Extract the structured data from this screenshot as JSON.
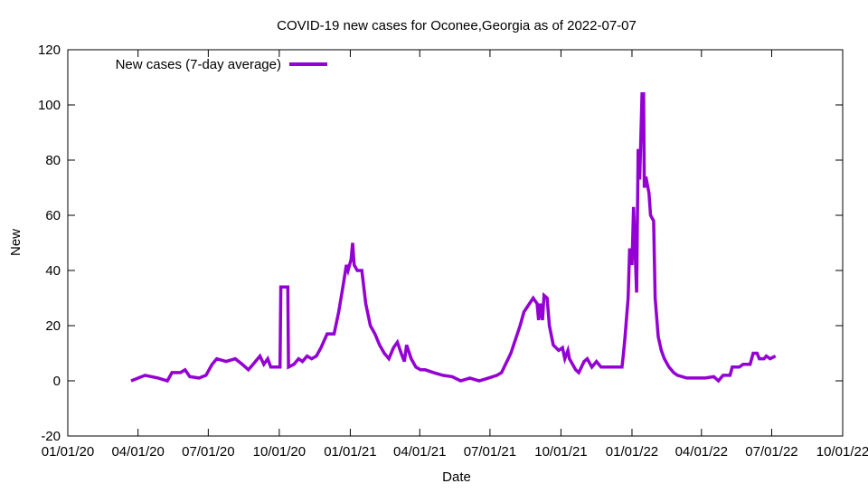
{
  "chart_data": {
    "type": "line",
    "title": "COVID-19 new cases for Oconee,Georgia as of 2022-07-07",
    "xlabel": "Date",
    "ylabel": "New",
    "x_units": "days since 2020-01-01",
    "xlim": [
      0,
      1004
    ],
    "ylim": [
      -20,
      120
    ],
    "yticks": [
      -20,
      0,
      20,
      40,
      60,
      80,
      100,
      120
    ],
    "xticks": [
      {
        "day": 0,
        "label": "01/01/20"
      },
      {
        "day": 91,
        "label": "04/01/20"
      },
      {
        "day": 182,
        "label": "07/01/20"
      },
      {
        "day": 274,
        "label": "10/01/20"
      },
      {
        "day": 366,
        "label": "01/01/21"
      },
      {
        "day": 456,
        "label": "04/01/21"
      },
      {
        "day": 547,
        "label": "07/01/21"
      },
      {
        "day": 639,
        "label": "10/01/21"
      },
      {
        "day": 731,
        "label": "01/01/22"
      },
      {
        "day": 821,
        "label": "04/01/22"
      },
      {
        "day": 912,
        "label": "07/01/22"
      },
      {
        "day": 1004,
        "label": "10/01/22"
      }
    ],
    "grid": false,
    "legend_position": "top-left",
    "series": [
      {
        "name": "New cases (7-day average)",
        "color": "#9400d3",
        "x": [
          82,
          100,
          117,
          129,
          135,
          146,
          152,
          158,
          170,
          179,
          187,
          193,
          205,
          217,
          226,
          234,
          240,
          249,
          254,
          259,
          263,
          269,
          275,
          276,
          285,
          286,
          293,
          299,
          304,
          310,
          316,
          322,
          328,
          336,
          345,
          351,
          357,
          361,
          363,
          367,
          369,
          371,
          375,
          381,
          386,
          392,
          398,
          404,
          410,
          416,
          422,
          427,
          432,
          436,
          439,
          445,
          451,
          457,
          463,
          474,
          486,
          498,
          509,
          521,
          533,
          545,
          556,
          562,
          574,
          586,
          591,
          603,
          608,
          610,
          612,
          615,
          617,
          621,
          624,
          629,
          636,
          641,
          644,
          648,
          650,
          658,
          662,
          669,
          673,
          679,
          685,
          691,
          697,
          705,
          708,
          718,
          720,
          722,
          726,
          728,
          731,
          733,
          737,
          739,
          741,
          744,
          746,
          747,
          749,
          753,
          755,
          759,
          761,
          765,
          769,
          773,
          779,
          785,
          790,
          802,
          814,
          826,
          837,
          843,
          849,
          858,
          861,
          870,
          875,
          884,
          888,
          893,
          896,
          902,
          905,
          910,
          917
        ],
        "y": [
          0,
          2,
          1,
          0,
          3,
          3,
          4,
          1.5,
          1,
          2,
          6,
          8,
          7,
          8,
          6,
          4,
          6,
          9,
          6,
          8,
          5,
          5,
          5,
          34,
          34,
          5,
          6,
          8,
          7,
          9,
          8,
          9,
          12,
          17,
          17,
          25,
          35,
          42,
          40,
          44,
          50,
          42,
          40,
          40,
          28,
          20,
          17,
          13,
          10,
          8,
          12,
          14,
          10,
          7,
          13,
          8,
          5,
          4,
          4,
          3,
          2,
          1.5,
          0,
          1,
          0,
          1,
          2,
          3,
          10,
          20,
          25,
          30,
          28,
          22,
          28,
          22,
          31,
          30,
          20,
          13,
          11,
          12,
          8,
          11,
          8,
          4,
          3,
          7,
          8,
          5,
          7,
          5,
          5,
          5,
          5,
          5,
          10,
          16,
          30,
          48,
          42,
          63,
          32,
          84,
          73,
          104,
          104,
          70,
          74,
          68,
          60,
          58,
          30,
          16,
          11,
          8,
          5,
          3,
          2,
          1,
          1,
          1,
          1.5,
          0,
          2,
          2,
          5,
          5,
          6,
          6,
          10,
          10,
          8,
          8,
          9,
          8,
          9
        ]
      }
    ]
  }
}
